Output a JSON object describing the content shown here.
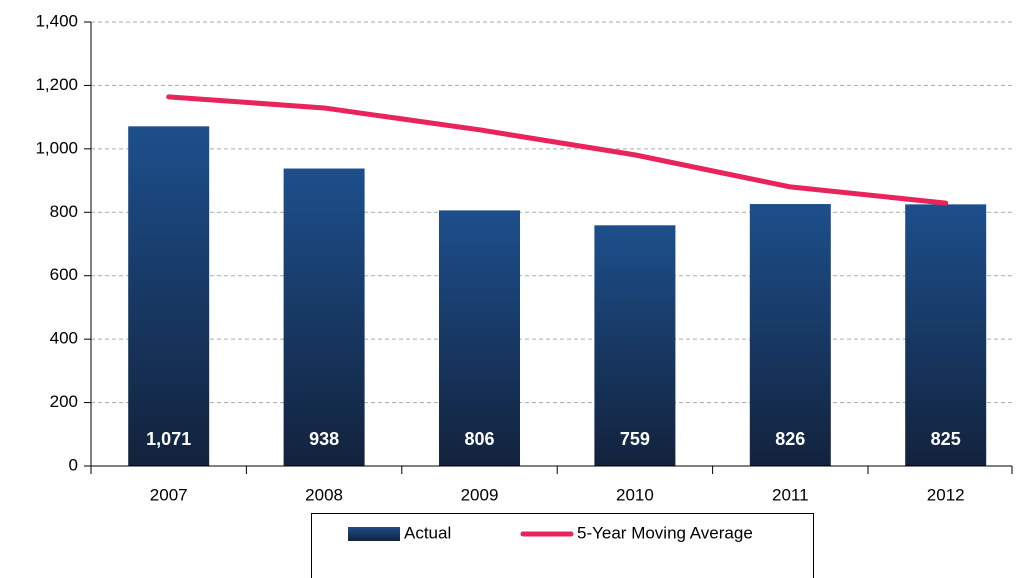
{
  "chart_data": {
    "type": "bar",
    "categories": [
      "2007",
      "2008",
      "2009",
      "2010",
      "2011",
      "2012"
    ],
    "series": [
      {
        "name": "Actual",
        "type": "bar",
        "color": "#1a4a85",
        "values": [
          1071,
          938,
          806,
          759,
          826,
          825
        ],
        "value_labels": [
          "1,071",
          "938",
          "806",
          "759",
          "826",
          "825"
        ]
      },
      {
        "name": "5-Year Moving Average",
        "type": "line",
        "color": "#e8245a",
        "values": [
          1164,
          1129,
          1060,
          981,
          880,
          829
        ]
      }
    ],
    "ylim": [
      0,
      1400
    ],
    "yticks": [
      0,
      200,
      400,
      600,
      800,
      {
        "value": 1000,
        "label": "1,000"
      },
      {
        "value": 1200,
        "label": "1,200"
      },
      {
        "value": 1400,
        "label": "1,400"
      }
    ],
    "grid": true,
    "legend": "bottom"
  }
}
